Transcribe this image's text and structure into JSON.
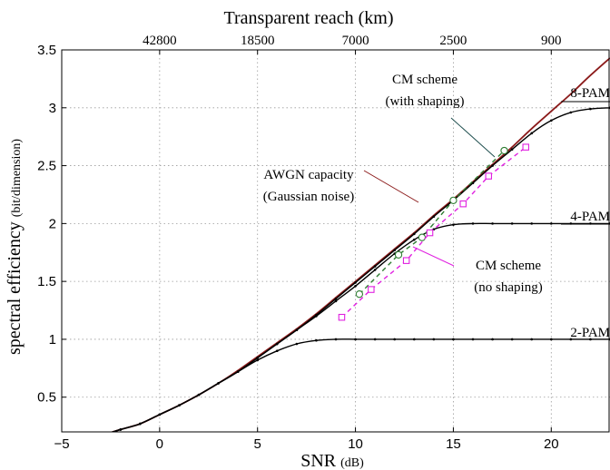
{
  "chart_data": {
    "type": "line",
    "x_axis": {
      "label": "SNR",
      "unit": "(dB)",
      "range": [
        -5,
        23
      ],
      "ticks": [
        {
          "value": -5,
          "label": "−5"
        },
        {
          "value": 0,
          "label": "0"
        },
        {
          "value": 5,
          "label": "5"
        },
        {
          "value": 10,
          "label": "10"
        },
        {
          "value": 15,
          "label": "15"
        },
        {
          "value": 20,
          "label": "20"
        }
      ]
    },
    "y_axis": {
      "label": "spectral efficiency",
      "unit": "(bit/dimension)",
      "range": [
        0.2,
        3.5
      ],
      "ticks": [
        {
          "value": 0.5,
          "label": "0.5"
        },
        {
          "value": 1,
          "label": "1"
        },
        {
          "value": 1.5,
          "label": "1.5"
        },
        {
          "value": 2,
          "label": "2"
        },
        {
          "value": 2.5,
          "label": "2.5"
        },
        {
          "value": 3,
          "label": "3"
        },
        {
          "value": 3.5,
          "label": "3.5"
        }
      ]
    },
    "top_axis": {
      "label": "Transparent reach (km)",
      "ticks": [
        {
          "value": 0,
          "label": "42800"
        },
        {
          "value": 5,
          "label": "18500"
        },
        {
          "value": 10,
          "label": "7000"
        },
        {
          "value": 15,
          "label": "2500"
        },
        {
          "value": 20,
          "label": "900"
        }
      ]
    },
    "grid": true,
    "series": [
      {
        "name": "AWGN capacity",
        "color": "#8b1a1a",
        "style": "solid",
        "x": [
          -5,
          -4,
          -3,
          -2,
          -1,
          0,
          1,
          2,
          3,
          4,
          5,
          6,
          7,
          8,
          9,
          10,
          11,
          12,
          13,
          14,
          15,
          16,
          17,
          18,
          19,
          20,
          21,
          22,
          23
        ],
        "y": [
          0.1,
          0.13,
          0.17,
          0.22,
          0.27,
          0.35,
          0.43,
          0.52,
          0.62,
          0.73,
          0.85,
          0.97,
          1.09,
          1.22,
          1.36,
          1.5,
          1.64,
          1.78,
          1.92,
          2.07,
          2.21,
          2.36,
          2.51,
          2.66,
          2.82,
          2.97,
          3.12,
          3.28,
          3.43
        ]
      },
      {
        "name": "2-PAM",
        "color": "#000000",
        "style": "solid-dots",
        "x": [
          -5,
          -4,
          -3,
          -2,
          -1,
          0,
          1,
          2,
          3,
          4,
          5,
          6,
          7,
          8,
          9,
          10,
          11,
          12,
          13,
          14,
          15,
          16,
          17,
          18,
          19,
          20,
          21,
          22,
          23
        ],
        "y": [
          0.1,
          0.13,
          0.17,
          0.22,
          0.27,
          0.35,
          0.43,
          0.52,
          0.62,
          0.72,
          0.82,
          0.9,
          0.96,
          0.99,
          1.0,
          1.0,
          1.0,
          1.0,
          1.0,
          1.0,
          1.0,
          1.0,
          1.0,
          1.0,
          1.0,
          1.0,
          1.0,
          1.0,
          1.0
        ]
      },
      {
        "name": "4-PAM",
        "color": "#000000",
        "style": "solid-dots",
        "x": [
          -5,
          -4,
          -3,
          -2,
          -1,
          0,
          1,
          2,
          3,
          4,
          5,
          6,
          7,
          8,
          9,
          10,
          11,
          12,
          13,
          14,
          15,
          16,
          17,
          18,
          19,
          20,
          21,
          22,
          23
        ],
        "y": [
          0.1,
          0.13,
          0.17,
          0.22,
          0.27,
          0.35,
          0.43,
          0.52,
          0.62,
          0.72,
          0.84,
          0.96,
          1.08,
          1.2,
          1.33,
          1.46,
          1.6,
          1.74,
          1.86,
          1.95,
          1.99,
          2.0,
          2.0,
          2.0,
          2.0,
          2.0,
          2.0,
          2.0,
          2.0
        ]
      },
      {
        "name": "8-PAM",
        "color": "#000000",
        "style": "solid-dots",
        "x": [
          -5,
          -4,
          -3,
          -2,
          -1,
          0,
          1,
          2,
          3,
          4,
          5,
          6,
          7,
          8,
          9,
          10,
          11,
          12,
          13,
          14,
          15,
          16,
          17,
          18,
          19,
          20,
          21,
          22,
          23
        ],
        "y": [
          0.1,
          0.13,
          0.17,
          0.22,
          0.27,
          0.35,
          0.43,
          0.52,
          0.62,
          0.72,
          0.84,
          0.96,
          1.08,
          1.21,
          1.35,
          1.49,
          1.63,
          1.77,
          1.91,
          2.06,
          2.2,
          2.35,
          2.5,
          2.64,
          2.78,
          2.89,
          2.96,
          2.99,
          3.0
        ]
      },
      {
        "name": "CM scheme (with shaping)",
        "color": "#2e7d32",
        "style": "dashed-circles",
        "x": [
          10.2,
          12.2,
          13.4,
          15.0,
          17.6
        ],
        "y": [
          1.39,
          1.73,
          1.88,
          2.2,
          2.63
        ]
      },
      {
        "name": "CM scheme (no shaping)",
        "color": "#e020e0",
        "style": "dashed-squares",
        "x": [
          9.3,
          10.8,
          12.6,
          13.8,
          15.5,
          16.8,
          18.7
        ],
        "y": [
          1.19,
          1.43,
          1.68,
          1.92,
          2.17,
          2.41,
          2.66
        ]
      }
    ],
    "annotations": [
      {
        "id": "awgn",
        "lines": [
          "AWGN capacity",
          "(Gaussian noise)"
        ]
      },
      {
        "id": "cm-shaping",
        "lines": [
          "CM scheme",
          "(with shaping)"
        ]
      },
      {
        "id": "cm-noshaping",
        "lines": [
          "CM scheme",
          "(no shaping)"
        ]
      },
      {
        "id": "pam8",
        "lines": [
          "8-PAM"
        ]
      },
      {
        "id": "pam4",
        "lines": [
          "4-PAM"
        ]
      },
      {
        "id": "pam2",
        "lines": [
          "2-PAM"
        ]
      }
    ]
  }
}
